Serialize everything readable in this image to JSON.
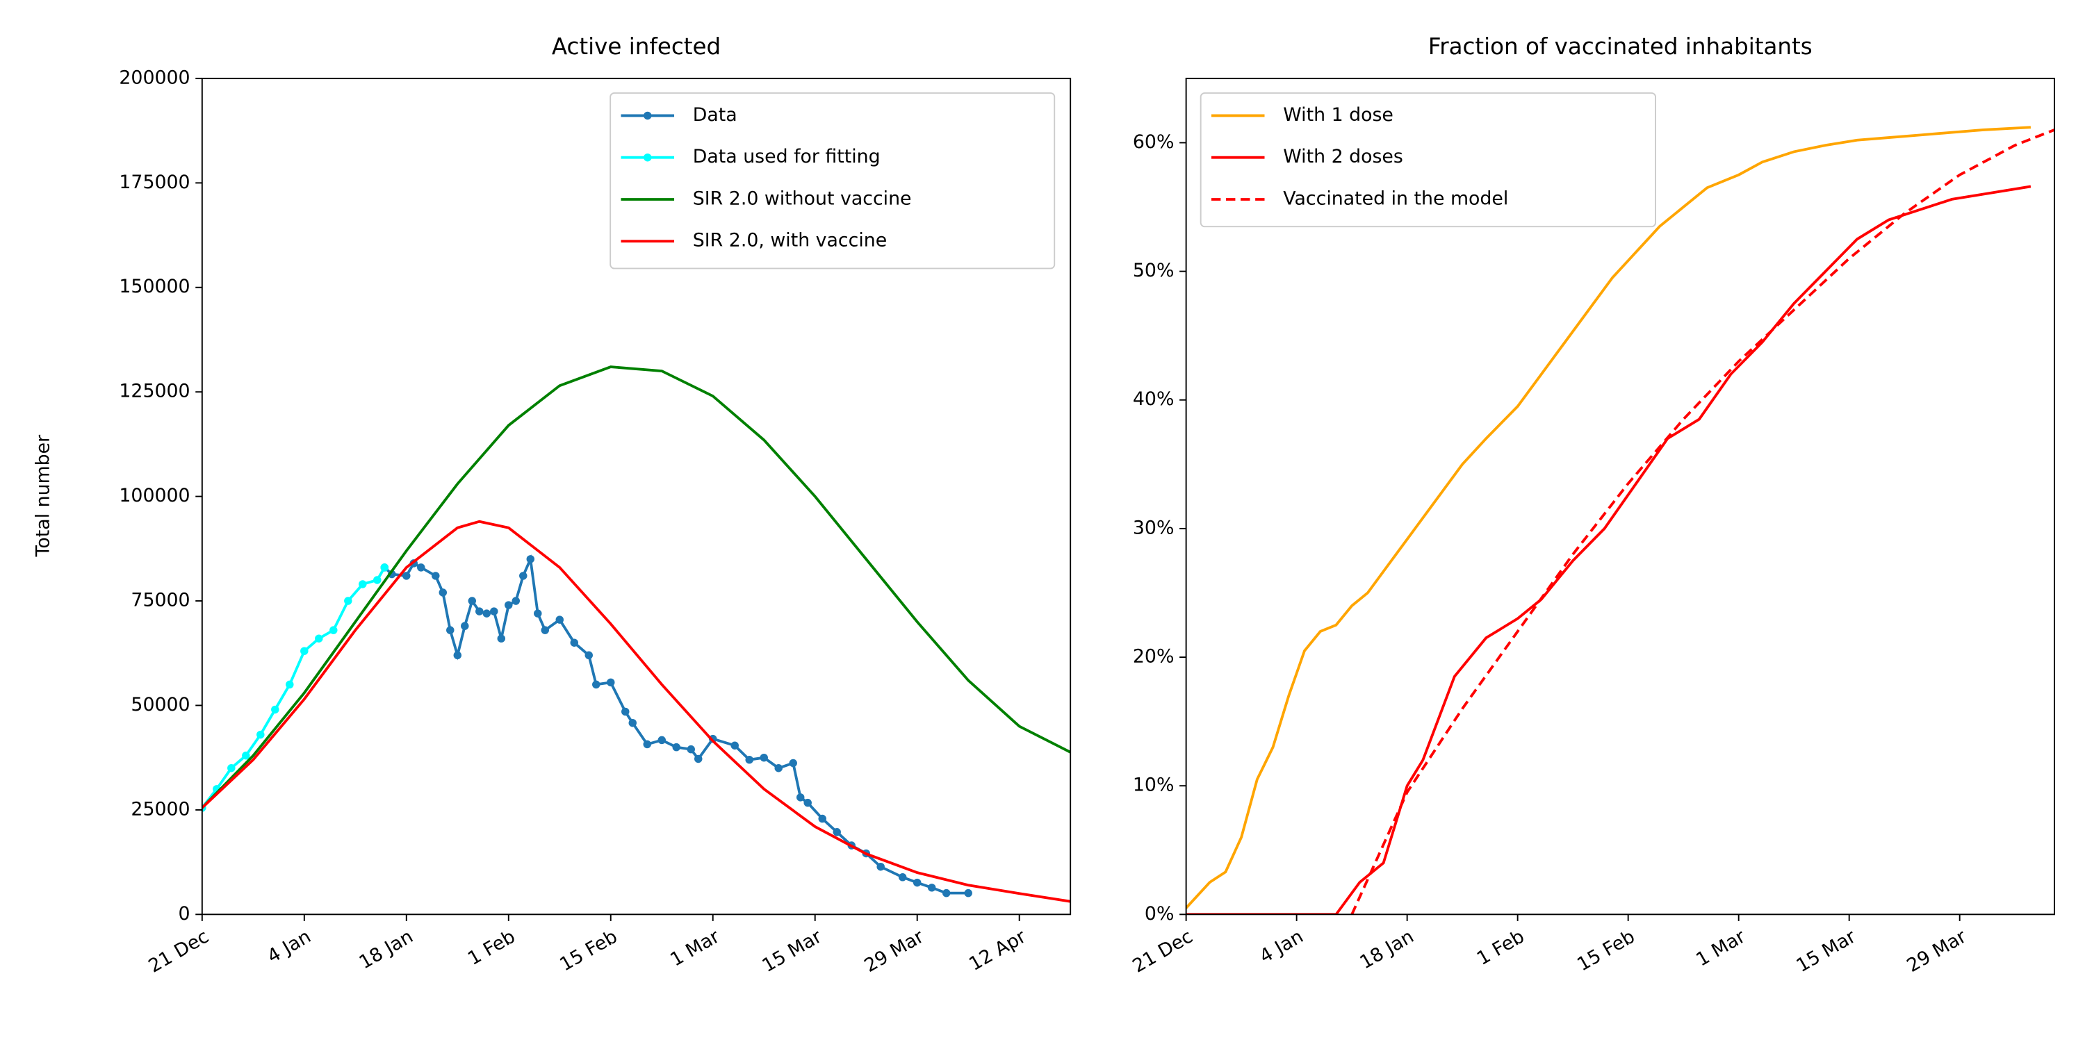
{
  "chart_data": [
    {
      "type": "line",
      "title": "Active infected",
      "ylabel": "Total number",
      "xlim": [
        "21 Dec",
        "19 Apr"
      ],
      "ylim": [
        0,
        200000
      ],
      "xticks": [
        "21 Dec",
        "4 Jan",
        "18 Jan",
        "1 Feb",
        "15 Feb",
        "1 Mar",
        "15 Mar",
        "29 Mar",
        "12 Apr"
      ],
      "yticks": [
        0,
        25000,
        50000,
        75000,
        100000,
        125000,
        150000,
        175000,
        200000
      ],
      "legend": "upper right",
      "series": [
        {
          "name": "Data",
          "color": "#1f77b4",
          "marker": true,
          "x": [
            "15 Jan",
            "16 Jan",
            "18 Jan",
            "19 Jan",
            "20 Jan",
            "22 Jan",
            "23 Jan",
            "24 Jan",
            "25 Jan",
            "26 Jan",
            "27 Jan",
            "28 Jan",
            "29 Jan",
            "30 Jan",
            "31 Jan",
            "1 Feb",
            "2 Feb",
            "3 Feb",
            "4 Feb",
            "5 Feb",
            "6 Feb",
            "8 Feb",
            "10 Feb",
            "12 Feb",
            "13 Feb",
            "15 Feb",
            "17 Feb",
            "18 Feb",
            "20 Feb",
            "22 Feb",
            "24 Feb",
            "26 Feb",
            "27 Feb",
            "1 Mar",
            "4 Mar",
            "6 Mar",
            "8 Mar",
            "10 Mar",
            "12 Mar",
            "13 Mar",
            "14 Mar",
            "16 Mar",
            "18 Mar",
            "20 Mar",
            "22 Mar",
            "24 Mar",
            "27 Mar",
            "29 Mar",
            "31 Mar",
            "2 Apr",
            "5 Apr"
          ],
          "values": [
            83000,
            81400,
            81000,
            84000,
            83000,
            81000,
            77000,
            68000,
            62000,
            69000,
            75000,
            72500,
            72000,
            72500,
            66000,
            74000,
            75000,
            81000,
            85000,
            72000,
            68000,
            70500,
            65000,
            62000,
            55000,
            55500,
            48500,
            45800,
            40700,
            41700,
            40000,
            39500,
            37200,
            42000,
            40400,
            37000,
            37500,
            35000,
            36200,
            28000,
            26700,
            22900,
            19700,
            16500,
            14600,
            11400,
            8900,
            7600,
            6400,
            5100,
            5100
          ]
        },
        {
          "name": "Data used for fitting",
          "color": "#00ffff",
          "marker": true,
          "x": [
            "21 Dec",
            "23 Dec",
            "25 Dec",
            "27 Dec",
            "29 Dec",
            "31 Dec",
            "2 Jan",
            "4 Jan",
            "6 Jan",
            "8 Jan",
            "10 Jan",
            "12 Jan",
            "14 Jan",
            "15 Jan"
          ],
          "values": [
            25500,
            30000,
            35000,
            38000,
            43000,
            49000,
            55000,
            63000,
            66000,
            68000,
            75000,
            79000,
            80000,
            83000
          ]
        },
        {
          "name": "SIR 2.0 without vaccine",
          "color": "#008000",
          "x": [
            "21 Dec",
            "28 Dec",
            "4 Jan",
            "11 Jan",
            "18 Jan",
            "25 Jan",
            "1 Feb",
            "8 Feb",
            "15 Feb",
            "22 Feb",
            "1 Mar",
            "8 Mar",
            "15 Mar",
            "22 Mar",
            "29 Mar",
            "5 Apr",
            "12 Apr",
            "19 Apr"
          ],
          "values": [
            25500,
            38000,
            53000,
            70000,
            87000,
            103000,
            117000,
            126500,
            131000,
            130000,
            124000,
            113500,
            100000,
            85000,
            70000,
            56000,
            45000,
            38800
          ]
        },
        {
          "name": "SIR 2.0, with vaccine",
          "color": "#ff0000",
          "x": [
            "21 Dec",
            "28 Dec",
            "4 Jan",
            "11 Jan",
            "18 Jan",
            "25 Jan",
            "28 Jan",
            "1 Feb",
            "8 Feb",
            "15 Feb",
            "22 Feb",
            "1 Mar",
            "8 Mar",
            "15 Mar",
            "22 Mar",
            "29 Mar",
            "5 Apr",
            "12 Apr",
            "19 Apr"
          ],
          "values": [
            25500,
            37000,
            51500,
            68000,
            83000,
            92500,
            94000,
            92500,
            83000,
            69500,
            55000,
            41500,
            30000,
            21000,
            14500,
            10000,
            7000,
            5000,
            3100
          ]
        }
      ]
    },
    {
      "type": "line",
      "title": "Fraction of vaccinated inhabitants",
      "xlim": [
        "21 Dec",
        "10 Apr"
      ],
      "ylim": [
        0,
        65
      ],
      "xticks": [
        "21 Dec",
        "4 Jan",
        "18 Jan",
        "1 Feb",
        "15 Feb",
        "1 Mar",
        "15 Mar",
        "29 Mar"
      ],
      "yticks": [
        {
          "value": 0,
          "label": "0%"
        },
        {
          "value": 10,
          "label": "10%"
        },
        {
          "value": 20,
          "label": "20%"
        },
        {
          "value": 30,
          "label": "30%"
        },
        {
          "value": 40,
          "label": "40%"
        },
        {
          "value": 50,
          "label": "50%"
        },
        {
          "value": 60,
          "label": "60%"
        }
      ],
      "legend": "upper left",
      "series": [
        {
          "name": "With 1 dose",
          "color": "#ffa500",
          "x": [
            "21 Dec",
            "24 Dec",
            "26 Dec",
            "28 Dec",
            "30 Dec",
            "1 Jan",
            "3 Jan",
            "5 Jan",
            "7 Jan",
            "9 Jan",
            "11 Jan",
            "13 Jan",
            "16 Jan",
            "19 Jan",
            "22 Jan",
            "25 Jan",
            "28 Jan",
            "1 Feb",
            "4 Feb",
            "7 Feb",
            "10 Feb",
            "13 Feb",
            "16 Feb",
            "19 Feb",
            "22 Feb",
            "25 Feb",
            "1 Mar",
            "4 Mar",
            "8 Mar",
            "12 Mar",
            "16 Mar",
            "20 Mar",
            "24 Mar",
            "28 Mar",
            "1 Apr",
            "7 Apr"
          ],
          "values": [
            0.5,
            2.5,
            3.3,
            6,
            10.5,
            13,
            17,
            20.5,
            22,
            22.5,
            24,
            25,
            27.5,
            30,
            32.5,
            35,
            37,
            39.5,
            42,
            44.5,
            47,
            49.5,
            51.5,
            53.5,
            55,
            56.5,
            57.5,
            58.5,
            59.3,
            59.8,
            60.2,
            60.4,
            60.6,
            60.8,
            61,
            61.2
          ]
        },
        {
          "name": "With 2 doses",
          "color": "#ff0000",
          "x": [
            "21 Dec",
            "9 Jan",
            "12 Jan",
            "15 Jan",
            "18 Jan",
            "20 Jan",
            "24 Jan",
            "28 Jan",
            "1 Feb",
            "4 Feb",
            "8 Feb",
            "12 Feb",
            "16 Feb",
            "20 Feb",
            "24 Feb",
            "28 Feb",
            "4 Mar",
            "8 Mar",
            "12 Mar",
            "16 Mar",
            "20 Mar",
            "24 Mar",
            "28 Mar",
            "1 Apr",
            "7 Apr"
          ],
          "values": [
            0,
            0,
            2.5,
            4,
            10,
            12,
            18.5,
            21.5,
            23,
            24.5,
            27.5,
            30,
            33.5,
            37,
            38.5,
            42,
            44.5,
            47.5,
            50,
            52.5,
            54,
            54.8,
            55.6,
            56,
            56.6
          ]
        },
        {
          "name": "Vaccinated in the model",
          "color": "#ff0000",
          "linestyle": "dashed",
          "x": [
            "11 Jan",
            "18 Jan",
            "25 Jan",
            "1 Feb",
            "8 Feb",
            "15 Feb",
            "22 Feb",
            "1 Mar",
            "8 Mar",
            "15 Mar",
            "22 Mar",
            "29 Mar",
            "5 Apr",
            "10 Apr"
          ],
          "values": [
            0,
            9.5,
            16,
            22,
            28,
            33.5,
            38.5,
            43,
            47,
            51,
            54.5,
            57.5,
            59.8,
            61
          ]
        }
      ]
    }
  ]
}
